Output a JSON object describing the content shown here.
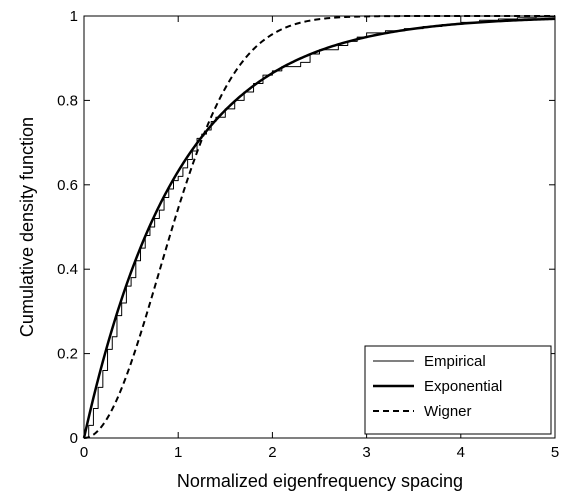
{
  "chart_data": {
    "type": "line",
    "xlabel": "Normalized eigenfrequency spacing",
    "ylabel": "Cumulative density function",
    "xlim": [
      0,
      5
    ],
    "ylim": [
      0,
      1
    ],
    "xticks": [
      0,
      1,
      2,
      3,
      4,
      5
    ],
    "yticks": [
      0,
      0.2,
      0.4,
      0.6,
      0.8,
      1
    ],
    "xtick_labels": [
      "0",
      "1",
      "2",
      "3",
      "4",
      "5"
    ],
    "ytick_labels": [
      "0",
      "0.2",
      "0.4",
      "0.6",
      "0.8",
      "1"
    ],
    "grid": false,
    "legend_position": "bottom-right",
    "series": [
      {
        "name": "Empirical",
        "style": "thin-solid",
        "color": "#000000",
        "x": [
          0,
          0.05,
          0.1,
          0.15,
          0.2,
          0.25,
          0.3,
          0.35,
          0.4,
          0.45,
          0.5,
          0.55,
          0.6,
          0.65,
          0.7,
          0.75,
          0.8,
          0.85,
          0.9,
          0.95,
          1.0,
          1.05,
          1.1,
          1.15,
          1.2,
          1.25,
          1.3,
          1.35,
          1.4,
          1.5,
          1.6,
          1.7,
          1.8,
          1.9,
          2.0,
          2.1,
          2.2,
          2.3,
          2.4,
          2.5,
          2.6,
          2.7,
          2.8,
          2.9,
          3.0,
          3.2,
          3.4,
          3.6,
          3.8,
          4.0,
          4.2,
          4.4,
          4.6,
          4.8,
          5.0
        ],
        "y": [
          0,
          0.03,
          0.07,
          0.12,
          0.16,
          0.21,
          0.24,
          0.29,
          0.32,
          0.36,
          0.38,
          0.42,
          0.45,
          0.48,
          0.5,
          0.52,
          0.54,
          0.57,
          0.59,
          0.61,
          0.62,
          0.64,
          0.66,
          0.68,
          0.71,
          0.72,
          0.73,
          0.75,
          0.76,
          0.78,
          0.8,
          0.82,
          0.84,
          0.86,
          0.87,
          0.88,
          0.88,
          0.89,
          0.91,
          0.92,
          0.92,
          0.93,
          0.94,
          0.95,
          0.96,
          0.965,
          0.97,
          0.975,
          0.98,
          0.985,
          0.99,
          0.993,
          0.996,
          0.998,
          1.0
        ]
      },
      {
        "name": "Exponential",
        "style": "thick-solid",
        "color": "#000000",
        "function": "exponential",
        "x": [
          0,
          0.1,
          0.2,
          0.3,
          0.4,
          0.5,
          0.6,
          0.7,
          0.8,
          0.9,
          1.0,
          1.1,
          1.2,
          1.3,
          1.4,
          1.5,
          1.6,
          1.7,
          1.8,
          1.9,
          2.0,
          2.2,
          2.4,
          2.6,
          2.8,
          3.0,
          3.2,
          3.4,
          3.6,
          3.8,
          4.0,
          4.2,
          4.4,
          4.6,
          4.8,
          5.0
        ],
        "y": [
          0,
          0.095,
          0.181,
          0.259,
          0.33,
          0.393,
          0.451,
          0.503,
          0.551,
          0.593,
          0.632,
          0.667,
          0.699,
          0.727,
          0.753,
          0.777,
          0.798,
          0.817,
          0.835,
          0.85,
          0.865,
          0.889,
          0.909,
          0.926,
          0.939,
          0.95,
          0.959,
          0.967,
          0.973,
          0.978,
          0.982,
          0.985,
          0.988,
          0.99,
          0.992,
          0.993
        ]
      },
      {
        "name": "Wigner",
        "style": "dashed",
        "color": "#000000",
        "function": "wigner",
        "x": [
          0,
          0.1,
          0.2,
          0.3,
          0.4,
          0.5,
          0.6,
          0.7,
          0.8,
          0.9,
          1.0,
          1.1,
          1.2,
          1.3,
          1.4,
          1.5,
          1.6,
          1.7,
          1.8,
          1.9,
          2.0,
          2.1,
          2.2,
          2.3,
          2.4,
          2.5,
          2.6,
          2.7,
          2.8,
          3.0,
          3.5,
          4.0,
          4.5,
          5.0
        ],
        "y": [
          0,
          0.008,
          0.031,
          0.068,
          0.118,
          0.178,
          0.246,
          0.319,
          0.395,
          0.47,
          0.544,
          0.613,
          0.677,
          0.735,
          0.786,
          0.829,
          0.866,
          0.897,
          0.922,
          0.942,
          0.957,
          0.969,
          0.978,
          0.984,
          0.989,
          0.993,
          0.995,
          0.997,
          0.998,
          0.999,
          1.0,
          1.0,
          1.0,
          1.0
        ]
      }
    ]
  }
}
